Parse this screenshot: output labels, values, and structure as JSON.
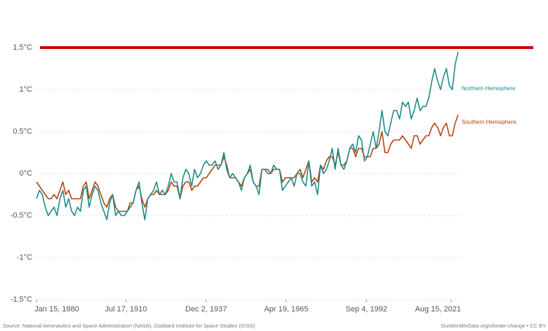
{
  "chart_data": {
    "type": "line",
    "x": [
      1880,
      1881,
      1882,
      1883,
      1884,
      1885,
      1886,
      1887,
      1888,
      1889,
      1890,
      1891,
      1892,
      1893,
      1894,
      1895,
      1896,
      1897,
      1898,
      1899,
      1900,
      1901,
      1902,
      1903,
      1904,
      1905,
      1906,
      1907,
      1908,
      1909,
      1910,
      1911,
      1912,
      1913,
      1914,
      1915,
      1916,
      1917,
      1918,
      1919,
      1920,
      1921,
      1922,
      1923,
      1924,
      1925,
      1926,
      1927,
      1928,
      1929,
      1930,
      1931,
      1932,
      1933,
      1934,
      1935,
      1936,
      1937,
      1938,
      1939,
      1940,
      1941,
      1942,
      1943,
      1944,
      1945,
      1946,
      1947,
      1948,
      1949,
      1950,
      1951,
      1952,
      1953,
      1954,
      1955,
      1956,
      1957,
      1958,
      1959,
      1960,
      1961,
      1962,
      1963,
      1964,
      1965,
      1966,
      1967,
      1968,
      1969,
      1970,
      1971,
      1972,
      1973,
      1974,
      1975,
      1976,
      1977,
      1978,
      1979,
      1980,
      1981,
      1982,
      1983,
      1984,
      1985,
      1986,
      1987,
      1988,
      1989,
      1990,
      1991,
      1992,
      1993,
      1994,
      1995,
      1996,
      1997,
      1998,
      1999,
      2000,
      2001,
      2002,
      2003,
      2004,
      2005,
      2006,
      2007,
      2008,
      2009,
      2010,
      2011,
      2012,
      2013,
      2014,
      2015,
      2016,
      2017,
      2018,
      2019,
      2020,
      2021,
      2022,
      2023,
      2024
    ],
    "series": [
      {
        "name": "Southern Hemisphere",
        "color": "#b8420f",
        "values": [
          -0.1,
          -0.15,
          -0.2,
          -0.25,
          -0.3,
          -0.3,
          -0.25,
          -0.3,
          -0.2,
          -0.1,
          -0.25,
          -0.2,
          -0.3,
          -0.3,
          -0.3,
          -0.3,
          -0.15,
          -0.1,
          -0.3,
          -0.2,
          -0.1,
          -0.15,
          -0.25,
          -0.35,
          -0.4,
          -0.3,
          -0.25,
          -0.4,
          -0.45,
          -0.45,
          -0.45,
          -0.45,
          -0.35,
          -0.35,
          -0.2,
          -0.15,
          -0.3,
          -0.4,
          -0.3,
          -0.25,
          -0.25,
          -0.2,
          -0.25,
          -0.25,
          -0.25,
          -0.2,
          -0.1,
          -0.15,
          -0.15,
          -0.3,
          -0.15,
          -0.1,
          -0.1,
          -0.2,
          -0.15,
          -0.15,
          -0.1,
          -0.05,
          -0.05,
          0.0,
          0.05,
          0.1,
          0.1,
          0.1,
          0.2,
          0.1,
          -0.05,
          -0.05,
          -0.05,
          -0.1,
          -0.15,
          -0.05,
          0.0,
          0.05,
          -0.1,
          -0.15,
          -0.15,
          0.05,
          0.05,
          0.0,
          0.0,
          0.05,
          0.05,
          0.05,
          -0.1,
          -0.05,
          -0.05,
          -0.05,
          -0.05,
          0.0,
          0.05,
          -0.05,
          0.05,
          0.15,
          -0.1,
          -0.05,
          -0.1,
          0.1,
          0.05,
          0.15,
          0.2,
          0.2,
          0.1,
          0.25,
          0.1,
          0.1,
          0.15,
          0.3,
          0.3,
          0.2,
          0.3,
          0.3,
          0.2,
          0.2,
          0.2,
          0.3,
          0.3,
          0.35,
          0.5,
          0.25,
          0.25,
          0.35,
          0.4,
          0.4,
          0.4,
          0.45,
          0.4,
          0.35,
          0.3,
          0.45,
          0.45,
          0.35,
          0.4,
          0.45,
          0.45,
          0.55,
          0.6,
          0.55,
          0.45,
          0.55,
          0.6,
          0.45,
          0.45,
          0.6,
          0.7
        ]
      },
      {
        "name": "Northern Hemisphere",
        "color": "#1b8c87",
        "values": [
          -0.3,
          -0.2,
          -0.25,
          -0.4,
          -0.5,
          -0.45,
          -0.4,
          -0.5,
          -0.3,
          -0.2,
          -0.4,
          -0.3,
          -0.45,
          -0.5,
          -0.4,
          -0.45,
          -0.2,
          -0.15,
          -0.4,
          -0.25,
          -0.15,
          -0.2,
          -0.35,
          -0.45,
          -0.55,
          -0.35,
          -0.25,
          -0.5,
          -0.45,
          -0.5,
          -0.5,
          -0.45,
          -0.4,
          -0.35,
          -0.2,
          -0.1,
          -0.35,
          -0.55,
          -0.3,
          -0.25,
          -0.2,
          -0.1,
          -0.25,
          -0.2,
          -0.25,
          -0.15,
          0.0,
          -0.1,
          -0.1,
          -0.3,
          -0.05,
          0.05,
          0.0,
          -0.15,
          0.05,
          -0.05,
          0.0,
          0.1,
          0.15,
          0.1,
          0.1,
          0.15,
          0.05,
          0.1,
          0.25,
          0.05,
          -0.05,
          0.0,
          -0.05,
          -0.1,
          -0.2,
          -0.05,
          0.0,
          0.1,
          -0.1,
          -0.15,
          -0.25,
          0.05,
          0.05,
          0.05,
          0.0,
          0.1,
          0.05,
          0.05,
          -0.2,
          -0.15,
          -0.1,
          -0.05,
          -0.15,
          0.0,
          0.0,
          -0.1,
          -0.15,
          0.15,
          -0.15,
          -0.1,
          -0.25,
          0.1,
          0.0,
          0.05,
          0.15,
          0.3,
          0.05,
          0.3,
          0.1,
          0.05,
          0.15,
          0.3,
          0.35,
          0.25,
          0.45,
          0.4,
          0.15,
          0.2,
          0.35,
          0.5,
          0.3,
          0.5,
          0.75,
          0.5,
          0.45,
          0.6,
          0.75,
          0.75,
          0.65,
          0.85,
          0.8,
          0.85,
          0.65,
          0.75,
          0.9,
          0.75,
          0.8,
          0.8,
          0.9,
          1.1,
          1.25,
          1.1,
          1.0,
          1.15,
          1.25,
          1.05,
          1.0,
          1.3,
          1.45
        ]
      }
    ],
    "xlim": [
      1880,
      2024.5
    ],
    "xticks": [
      {
        "value": 1880.04,
        "label": "Jan 15, 1880"
      },
      {
        "value": 1910.54,
        "label": "Jul 17, 1910"
      },
      {
        "value": 1937.92,
        "label": "Dec 2, 1937"
      },
      {
        "value": 1965.3,
        "label": "Apr 19, 1965"
      },
      {
        "value": 1992.68,
        "label": "Sep 4, 1992"
      },
      {
        "value": 2021.62,
        "label": "Aug 15, 2021"
      }
    ],
    "ylim": [
      -1.5,
      1.9
    ],
    "yticks": [
      {
        "value": -1.5,
        "label": "-1.5°C"
      },
      {
        "value": -1,
        "label": "-1°C"
      },
      {
        "value": -0.5,
        "label": "-0.5°C"
      },
      {
        "value": 0,
        "label": "0°C"
      },
      {
        "value": 0.5,
        "label": "0.5°C"
      },
      {
        "value": 1,
        "label": "1°C"
      },
      {
        "value": 1.5,
        "label": "1.5°C"
      }
    ],
    "grid": true,
    "threshold": {
      "value": 1.5,
      "color": "#cc0000"
    },
    "source": "Source: National Aeronautics and Space Administration (NASA), Goddard Institute for Space Studies (GISS)",
    "credit": "OurWorldInData.org/climate-change • CC BY"
  }
}
